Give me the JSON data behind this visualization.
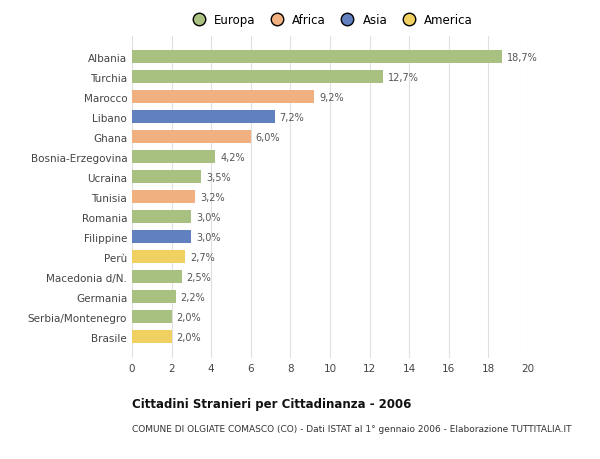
{
  "categories": [
    "Albania",
    "Turchia",
    "Marocco",
    "Libano",
    "Ghana",
    "Bosnia-Erzegovina",
    "Ucraina",
    "Tunisia",
    "Romania",
    "Filippine",
    "Perù",
    "Macedonia d/N.",
    "Germania",
    "Serbia/Montenegro",
    "Brasile"
  ],
  "values": [
    18.7,
    12.7,
    9.2,
    7.2,
    6.0,
    4.2,
    3.5,
    3.2,
    3.0,
    3.0,
    2.7,
    2.5,
    2.2,
    2.0,
    2.0
  ],
  "labels": [
    "18,7%",
    "12,7%",
    "9,2%",
    "7,2%",
    "6,0%",
    "4,2%",
    "3,5%",
    "3,2%",
    "3,0%",
    "3,0%",
    "2,7%",
    "2,5%",
    "2,2%",
    "2,0%",
    "2,0%"
  ],
  "continents": [
    "Europa",
    "Europa",
    "Africa",
    "Asia",
    "Africa",
    "Europa",
    "Europa",
    "Africa",
    "Europa",
    "Asia",
    "America",
    "Europa",
    "Europa",
    "Europa",
    "America"
  ],
  "colors": {
    "Europa": "#a8c080",
    "Africa": "#f0b080",
    "Asia": "#6080c0",
    "America": "#f0d060"
  },
  "legend_order": [
    "Europa",
    "Africa",
    "Asia",
    "America"
  ],
  "title1": "Cittadini Stranieri per Cittadinanza - 2006",
  "title2": "COMUNE DI OLGIATE COMASCO (CO) - Dati ISTAT al 1° gennaio 2006 - Elaborazione TUTTITALIA.IT",
  "xlim": [
    0,
    20
  ],
  "xticks": [
    0,
    2,
    4,
    6,
    8,
    10,
    12,
    14,
    16,
    18,
    20
  ],
  "background_color": "#ffffff",
  "grid_color": "#e0e0e0"
}
